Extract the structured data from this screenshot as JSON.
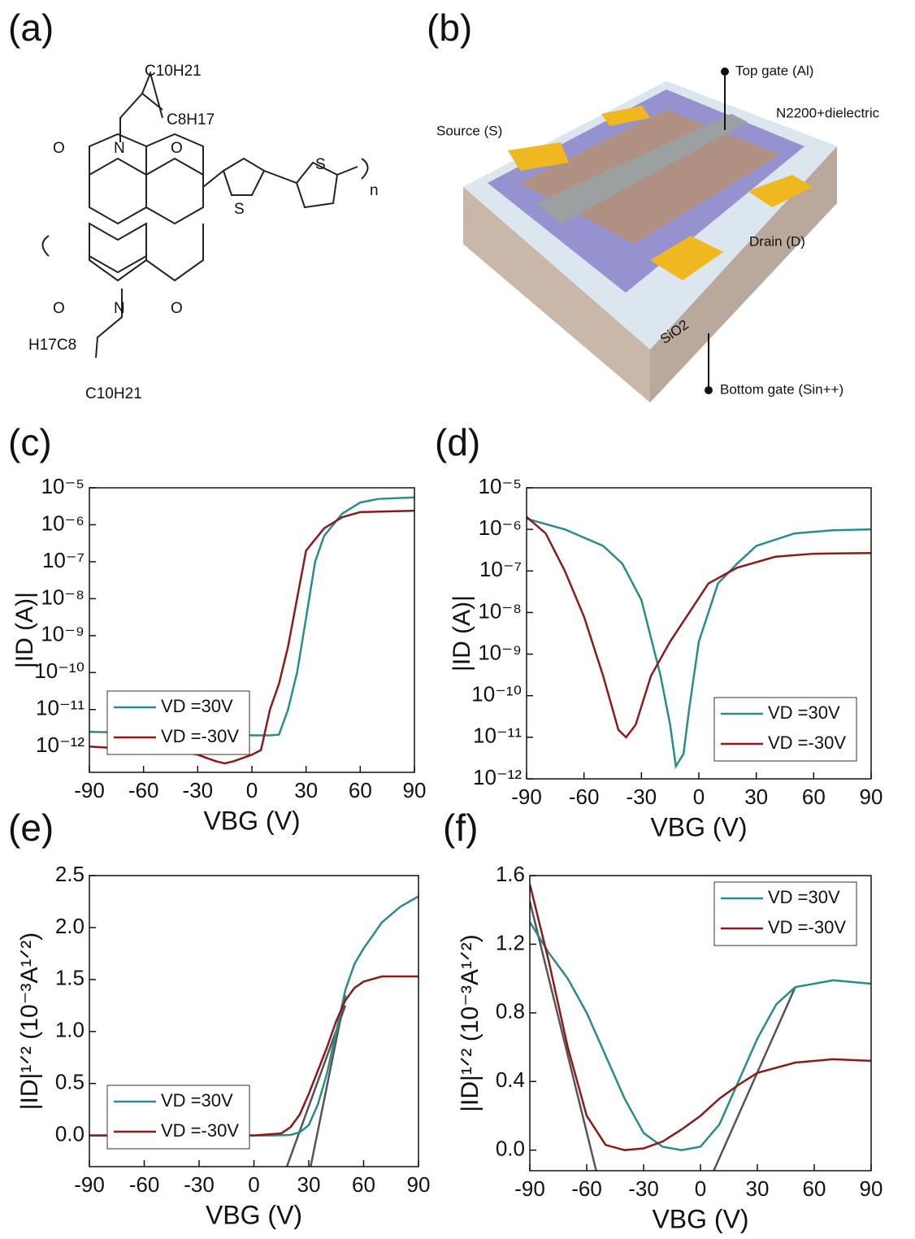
{
  "panels": [
    "(a)",
    "(b)",
    "(c)",
    "(d)",
    "(e)",
    "(f)"
  ],
  "structure": {
    "labels": [
      "C10H21",
      "C8H17",
      "O",
      "N",
      "O",
      "S",
      "S",
      "n",
      "O",
      "N",
      "O",
      "H17C8",
      "C10H21"
    ]
  },
  "device": {
    "labels": [
      "Top gate (Al)",
      "N2200+dielectric",
      "Source (S)",
      "Drain (D)",
      "SiO2",
      "Bottom gate (Sin++)"
    ]
  },
  "chart_data": [
    {
      "type": "line",
      "log_y": true,
      "xlabel": "VBG (V)",
      "ylabel": "|ID (A)|",
      "legend": "lower left",
      "xlim": [
        -90,
        90
      ],
      "xticks": [
        -90,
        -60,
        -30,
        0,
        30,
        60,
        90
      ],
      "ylim": [
        2e-13,
        1e-05
      ],
      "yticks": [
        {
          "value": 1e-05,
          "label": "10⁻⁵"
        },
        {
          "value": 1e-06,
          "label": "10⁻⁶"
        },
        {
          "value": 1e-07,
          "label": "10⁻⁷"
        },
        {
          "value": 1e-08,
          "label": "10⁻⁸"
        },
        {
          "value": 1e-09,
          "label": "10⁻⁹"
        },
        {
          "value": 1e-10,
          "label": "10⁻¹⁰"
        },
        {
          "value": 1e-11,
          "label": "10⁻¹¹"
        },
        {
          "value": 1e-12,
          "label": "10⁻¹²"
        }
      ],
      "series": [
        {
          "name": "VD =30V",
          "color": "#2a8c8a",
          "x": [
            -90,
            -60,
            -30,
            0,
            10,
            15,
            20,
            25,
            30,
            35,
            40,
            50,
            60,
            70,
            90
          ],
          "values": [
            2.5e-12,
            2.3e-12,
            2.2e-12,
            2e-12,
            2e-12,
            2.1e-12,
            1e-11,
            1e-10,
            3e-09,
            1e-07,
            5e-07,
            2e-06,
            4e-06,
            5e-06,
            5.5e-06
          ]
        },
        {
          "name": "VD =-30V",
          "color": "#8b1a1a",
          "x": [
            -90,
            -75,
            -60,
            -45,
            -30,
            -20,
            -15,
            -10,
            0,
            5,
            10,
            15,
            20,
            25,
            30,
            40,
            50,
            60,
            90
          ],
          "values": [
            1e-12,
            9e-13,
            8e-13,
            8e-13,
            6e-13,
            4e-13,
            3.5e-13,
            4e-13,
            6e-13,
            8e-13,
            1e-11,
            5e-11,
            5e-10,
            1e-08,
            2e-07,
            8e-07,
            1.6e-06,
            2.2e-06,
            2.4e-06
          ]
        }
      ]
    },
    {
      "type": "line",
      "log_y": true,
      "xlabel": "VBG (V)",
      "ylabel": "|ID (A)|",
      "legend": "lower right",
      "xlim": [
        -90,
        90
      ],
      "xticks": [
        -90,
        -60,
        -30,
        0,
        30,
        60,
        90
      ],
      "ylim": [
        1e-12,
        1e-05
      ],
      "yticks": [
        {
          "value": 1e-05,
          "label": "10⁻⁵"
        },
        {
          "value": 1e-06,
          "label": "10⁻⁶"
        },
        {
          "value": 1e-07,
          "label": "10⁻⁷"
        },
        {
          "value": 1e-08,
          "label": "10⁻⁸"
        },
        {
          "value": 1e-09,
          "label": "10⁻⁹"
        },
        {
          "value": 1e-10,
          "label": "10⁻¹⁰"
        },
        {
          "value": 1e-11,
          "label": "10⁻¹¹"
        },
        {
          "value": 1e-12,
          "label": "10⁻¹²"
        }
      ],
      "series": [
        {
          "name": "VD =30V",
          "color": "#2a8c8a",
          "x": [
            -90,
            -70,
            -50,
            -40,
            -30,
            -20,
            -15,
            -12,
            -8,
            -5,
            0,
            10,
            20,
            30,
            50,
            70,
            90
          ],
          "values": [
            1.8e-06,
            1e-06,
            4e-07,
            1.5e-07,
            2e-08,
            3e-10,
            2e-11,
            2e-12,
            4e-12,
            5e-11,
            2e-09,
            5e-08,
            1.5e-07,
            4e-07,
            8e-07,
            9.5e-07,
            1e-06
          ]
        },
        {
          "name": "VD =-30V",
          "color": "#8b1a1a",
          "x": [
            -90,
            -80,
            -70,
            -60,
            -50,
            -42,
            -38,
            -33,
            -25,
            -15,
            -5,
            5,
            20,
            40,
            60,
            90
          ],
          "values": [
            2e-06,
            8e-07,
            1e-07,
            8e-09,
            3e-10,
            1.5e-11,
            1e-11,
            2e-11,
            3e-10,
            2e-09,
            1e-08,
            5e-08,
            1.2e-07,
            2.2e-07,
            2.6e-07,
            2.7e-07
          ]
        }
      ]
    },
    {
      "type": "line",
      "log_y": false,
      "xlabel": "VBG (V)",
      "ylabel": "|ID|¹ᐟ² (10⁻³A¹ᐟ²)",
      "legend": "lower left",
      "xlim": [
        -90,
        90
      ],
      "xticks": [
        -90,
        -60,
        -30,
        0,
        30,
        60,
        90
      ],
      "ylim": [
        -0.3,
        2.5
      ],
      "yticks": [
        {
          "value": 0,
          "label": "0.0"
        },
        0.5,
        {
          "value": 1,
          "label": "1.0"
        },
        1.5,
        {
          "value": 2,
          "label": "2.0"
        },
        2.5
      ],
      "series": [
        {
          "name": "VD =30V",
          "color": "#2a8c8a",
          "x": [
            -90,
            -60,
            -30,
            0,
            10,
            20,
            25,
            30,
            35,
            40,
            45,
            50,
            55,
            60,
            70,
            80,
            90
          ],
          "values": [
            0,
            0,
            0,
            0,
            0,
            0.005,
            0.03,
            0.1,
            0.3,
            0.6,
            1.0,
            1.4,
            1.65,
            1.8,
            2.05,
            2.2,
            2.3
          ]
        },
        {
          "name": "VD =-30V",
          "color": "#8b1a1a",
          "x": [
            -90,
            -60,
            -30,
            0,
            15,
            20,
            25,
            30,
            40,
            45,
            50,
            55,
            60,
            70,
            90
          ],
          "values": [
            0,
            0,
            0,
            0,
            0.02,
            0.08,
            0.2,
            0.4,
            0.85,
            1.1,
            1.3,
            1.42,
            1.48,
            1.53,
            1.53
          ]
        }
      ],
      "fit_lines": [
        {
          "color": "#555555",
          "x": [
            18,
            50
          ],
          "values": [
            -0.3,
            1.25
          ]
        },
        {
          "color": "#555555",
          "x": [
            31,
            50
          ],
          "values": [
            -0.3,
            1.35
          ]
        }
      ]
    },
    {
      "type": "line",
      "log_y": false,
      "xlabel": "VBG (V)",
      "ylabel": "|ID|¹ᐟ² (10⁻³A¹ᐟ²)",
      "legend": "upper right",
      "xlim": [
        -90,
        90
      ],
      "xticks": [
        -90,
        -60,
        -30,
        0,
        30,
        60,
        90
      ],
      "ylim": [
        -0.12,
        1.6
      ],
      "yticks": [
        {
          "value": 0,
          "label": "0.0"
        },
        0.4,
        0.8,
        1.2,
        1.6
      ],
      "series": [
        {
          "name": "VD =30V",
          "color": "#2a8c8a",
          "x": [
            -90,
            -80,
            -70,
            -60,
            -50,
            -40,
            -30,
            -20,
            -10,
            0,
            10,
            20,
            30,
            40,
            50,
            70,
            90
          ],
          "values": [
            1.33,
            1.15,
            1.0,
            0.8,
            0.55,
            0.3,
            0.1,
            0.02,
            0,
            0.02,
            0.15,
            0.4,
            0.65,
            0.85,
            0.95,
            0.99,
            0.97
          ]
        },
        {
          "name": "VD =-30V",
          "color": "#8b1a1a",
          "x": [
            -90,
            -80,
            -70,
            -60,
            -50,
            -40,
            -30,
            -20,
            -10,
            0,
            10,
            20,
            30,
            50,
            70,
            90
          ],
          "values": [
            1.55,
            1.1,
            0.6,
            0.2,
            0.03,
            0,
            0.01,
            0.05,
            0.12,
            0.2,
            0.3,
            0.38,
            0.45,
            0.51,
            0.53,
            0.52
          ]
        }
      ],
      "fit_lines": [
        {
          "color": "#555555",
          "x": [
            -90,
            -55
          ],
          "values": [
            1.45,
            -0.12
          ]
        },
        {
          "color": "#555555",
          "x": [
            7,
            50
          ],
          "values": [
            -0.12,
            0.95
          ]
        }
      ]
    }
  ]
}
